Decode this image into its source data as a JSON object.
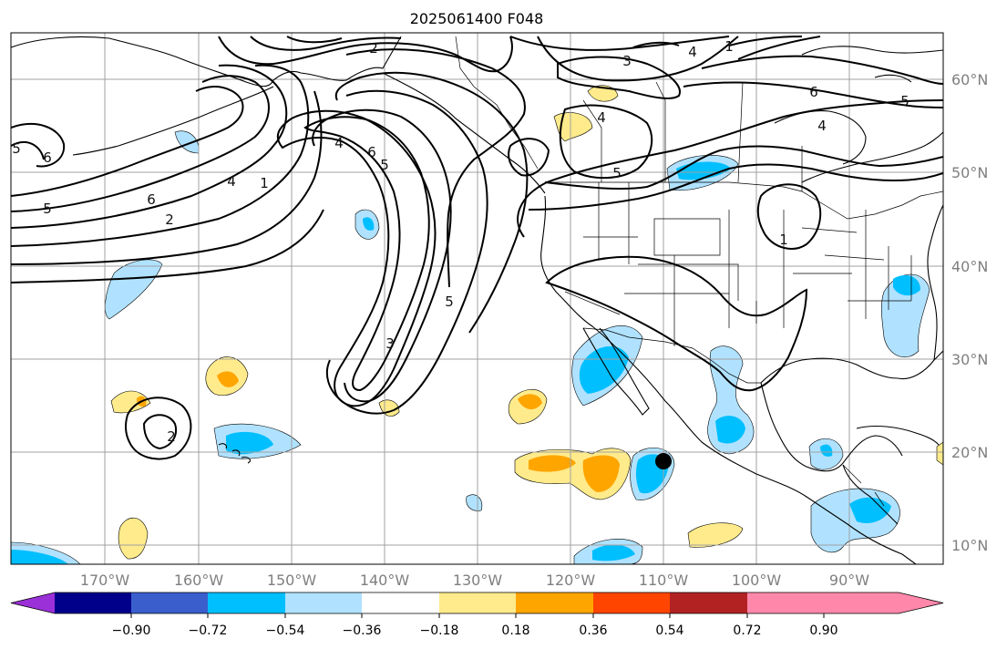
{
  "title": "2025061400 F048",
  "lon_labels": [
    "170°W",
    "160°W",
    "150°W",
    "140°W",
    "130°W",
    "120°W",
    "110°W",
    "100°W",
    "90°W"
  ],
  "lat_labels": [
    "60°N",
    "50°N",
    "40°N",
    "30°N",
    "20°N",
    "10°N"
  ],
  "colorbar": {
    "tick_labels": [
      "−0.90",
      "−0.72",
      "−0.54",
      "−0.36",
      "−0.18",
      "0.18",
      "0.36",
      "0.54",
      "0.72",
      "0.90"
    ],
    "colors": [
      "#9b30d9",
      "#00008b",
      "#3a5fcd",
      "#00bfff",
      "#b0e2ff",
      "#ffffff",
      "#ffeb8c",
      "#ffa500",
      "#ff4500",
      "#b22222",
      "#ff88aa"
    ]
  },
  "contour_labels": [
    "2",
    "3",
    "4",
    "1",
    "5",
    "6",
    "4",
    "6",
    "2",
    "1",
    "6",
    "5",
    "4",
    "5",
    "3",
    "5",
    "1",
    "2",
    "4",
    "5",
    "6",
    "5",
    "4"
  ],
  "marker": "storm-center"
}
